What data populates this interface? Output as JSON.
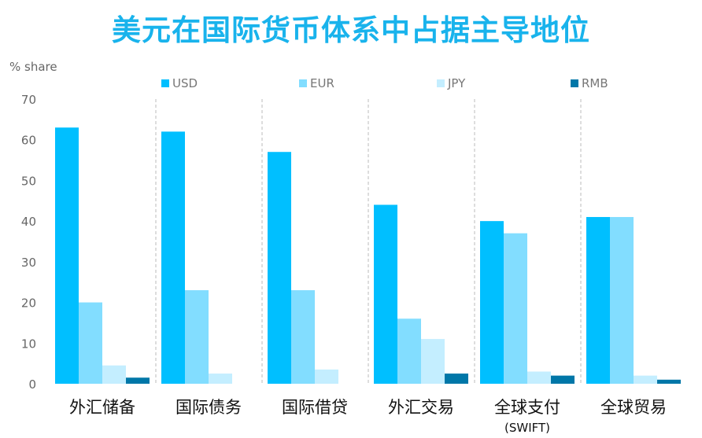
{
  "chart_data": {
    "type": "bar",
    "title": "美元在国际货币体系中占据主导地位",
    "ylabel": "% share",
    "ylim": [
      0,
      70
    ],
    "yticks": [
      0,
      10,
      20,
      30,
      40,
      50,
      60,
      70
    ],
    "categories": [
      "外汇储备",
      "国际债务",
      "国际借贷",
      "外汇交易",
      "全球支付",
      "全球贸易"
    ],
    "category_sublabels": [
      "",
      "",
      "",
      "",
      "(SWIFT)",
      ""
    ],
    "legend_position": "top",
    "grid": false,
    "series": [
      {
        "name": "USD",
        "color": "#00BFFF",
        "values": [
          63,
          62,
          57,
          44,
          40,
          41
        ]
      },
      {
        "name": "EUR",
        "color": "#82DDFF",
        "values": [
          20,
          23,
          23,
          16,
          37,
          41
        ]
      },
      {
        "name": "JPY",
        "color": "#C4EEFF",
        "values": [
          4.5,
          2.5,
          3.5,
          11,
          3,
          2
        ]
      },
      {
        "name": "RMB",
        "color": "#0077A8",
        "values": [
          1.5,
          0,
          0,
          2.5,
          2,
          1
        ]
      }
    ]
  }
}
